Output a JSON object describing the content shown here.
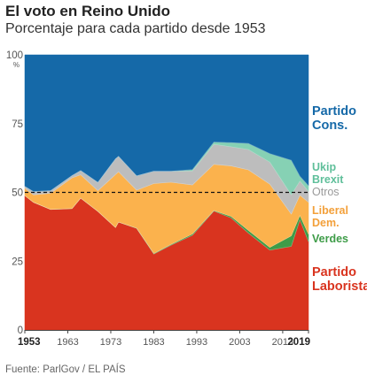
{
  "header": {
    "title": "El voto en Reino Unido",
    "subtitle": "Porcentaje para cada partido desde 1953"
  },
  "footer": {
    "source": "Fuente: ParlGov / EL PAÍS"
  },
  "chart_data": {
    "type": "area",
    "stacked": true,
    "y_unit": "%",
    "ylim": [
      0,
      100
    ],
    "xlim": [
      1953,
      2019
    ],
    "y_ticks": [
      "0",
      "25",
      "50",
      "75",
      "100"
    ],
    "x_ticks": [
      "1953",
      "1963",
      "1973",
      "1983",
      "1993",
      "2003",
      "2013",
      "2019"
    ],
    "x_ticks_bold": [
      "1953",
      "2019"
    ],
    "reference_line": {
      "y": 50,
      "style": "dashed"
    },
    "x": [
      1953,
      1955,
      1959,
      1964,
      1966,
      1970,
      1974.1,
      1974.8,
      1979,
      1983,
      1987,
      1992,
      1997,
      2001,
      2005,
      2010,
      2015,
      2017,
      2019
    ],
    "series": [
      {
        "name": "Partido Laborista",
        "label_lines": [
          "Partido",
          "Laborista"
        ],
        "color": "#d9341f",
        "values": [
          48.8,
          46.4,
          43.8,
          44.1,
          47.9,
          43.1,
          37.2,
          39.2,
          36.9,
          27.6,
          30.8,
          34.4,
          43.2,
          40.7,
          35.2,
          29.0,
          30.4,
          40.0,
          32.1
        ]
      },
      {
        "name": "Verdes",
        "label_lines": [
          "Verdes"
        ],
        "color": "#3e9c48",
        "values": [
          0,
          0,
          0,
          0,
          0,
          0,
          0,
          0,
          0.1,
          0.2,
          0.3,
          0.5,
          0.2,
          0.6,
          1.0,
          1.0,
          3.8,
          1.6,
          2.7
        ]
      },
      {
        "name": "Liberal Dem.",
        "label_lines": [
          "Liberal",
          "Dem."
        ],
        "color": "#fbb24d",
        "values": [
          2.7,
          2.7,
          5.9,
          11.2,
          8.5,
          7.5,
          19.3,
          18.3,
          13.8,
          25.4,
          22.6,
          17.8,
          16.8,
          18.3,
          22.0,
          23.0,
          7.9,
          7.4,
          11.6
        ]
      },
      {
        "name": "Otros",
        "label_lines": [
          "Otros"
        ],
        "color": "#bdbdbd",
        "values": [
          0.7,
          1.2,
          0.9,
          0.8,
          1.5,
          3.0,
          5.7,
          5.6,
          5.2,
          4.5,
          4.0,
          5.1,
          7.3,
          7.0,
          7.4,
          8.0,
          7.0,
          5.1,
          4.0
        ]
      },
      {
        "name": "Ukip Brexit",
        "label_lines": [
          "Ukip",
          "Brexit"
        ],
        "color": "#86d1b4",
        "values": [
          0,
          0,
          0,
          0,
          0,
          0,
          0,
          0,
          0,
          0,
          0,
          0.5,
          0.8,
          1.5,
          2.2,
          3.1,
          12.6,
          1.8,
          2.0
        ]
      },
      {
        "name": "Partido Cons.",
        "label_lines": [
          "Partido",
          "Cons."
        ],
        "color": "#1569a8",
        "values": [
          47.8,
          49.7,
          49.4,
          43.9,
          42.1,
          46.4,
          37.8,
          36.9,
          44.0,
          42.3,
          42.3,
          41.7,
          31.7,
          31.9,
          32.2,
          35.9,
          38.3,
          44.1,
          47.6
        ]
      }
    ]
  }
}
